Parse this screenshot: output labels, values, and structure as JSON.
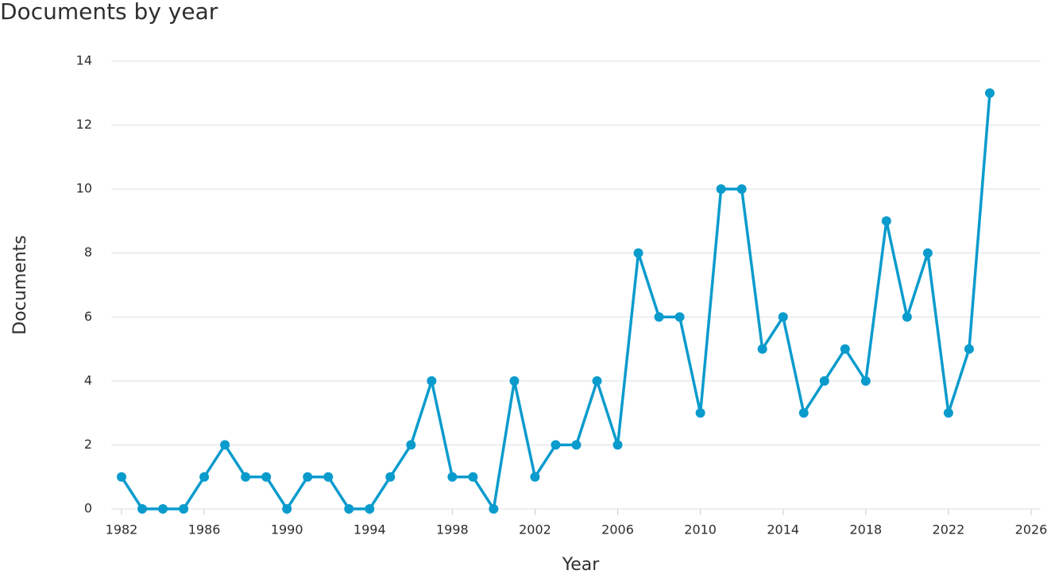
{
  "chart_data": {
    "type": "line",
    "title": "Documents by year",
    "x_label": "Year",
    "y_label": "Documents",
    "x": [
      1982,
      1983,
      1984,
      1985,
      1986,
      1987,
      1988,
      1989,
      1990,
      1991,
      1992,
      1993,
      1994,
      1995,
      1996,
      1997,
      1998,
      1999,
      2000,
      2001,
      2002,
      2003,
      2004,
      2005,
      2006,
      2007,
      2008,
      2009,
      2010,
      2011,
      2012,
      2013,
      2014,
      2015,
      2016,
      2017,
      2018,
      2019,
      2020,
      2021,
      2022,
      2023,
      2024
    ],
    "series": [
      {
        "name": "Documents",
        "color": "#0a9bcd",
        "values": [
          1,
          0,
          0,
          0,
          1,
          2,
          1,
          1,
          0,
          1,
          1,
          0,
          0,
          1,
          2,
          4,
          1,
          1,
          0,
          4,
          1,
          2,
          2,
          4,
          2,
          8,
          6,
          6,
          3,
          10,
          10,
          5,
          6,
          3,
          4,
          5,
          4,
          9,
          6,
          8,
          3,
          5,
          13
        ]
      }
    ],
    "xlim": [
      1982,
      2026
    ],
    "xticks": [
      1982,
      1986,
      1990,
      1994,
      1998,
      2002,
      2006,
      2010,
      2014,
      2018,
      2022,
      2026
    ],
    "ylim": [
      0,
      14
    ],
    "yticks": [
      0,
      2,
      4,
      6,
      8,
      10,
      12,
      14
    ],
    "grid": true
  }
}
